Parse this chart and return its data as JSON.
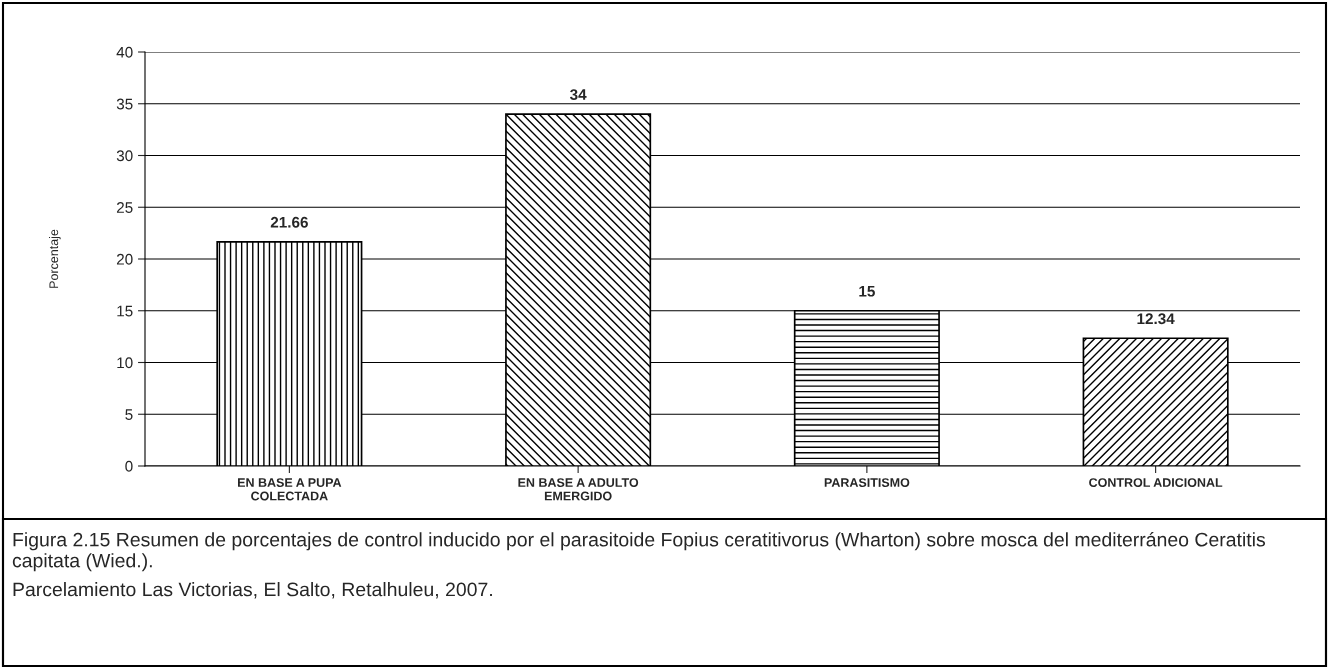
{
  "chart_data": {
    "type": "bar",
    "ylabel": "Porcentaje",
    "categories": [
      "EN BASE A PUPA\nCOLECTADA",
      "EN BASE A ADULTO\nEMERGIDO",
      "PARASITISMO",
      "CONTROL ADICIONAL"
    ],
    "values": [
      21.66,
      34,
      15,
      12.34
    ],
    "colors": [
      "#000000",
      "#000000",
      "#000000",
      "#000000"
    ],
    "ylim": [
      0,
      40
    ],
    "yticks": [
      0,
      5,
      10,
      15,
      20,
      25,
      30,
      35,
      40
    ],
    "grid": "y",
    "data_labels": true,
    "legend": false,
    "annotations": [
      "Figura 2.15 Resumen de porcentajes de control inducido por el parasitoide Fopius ceratitivorus (Wharton) sobre mosca del mediterráneo Ceratitis capitata (Wied.).",
      "Parcelamiento Las Victorias, El Salto, Retalhuleu, 2007."
    ]
  }
}
